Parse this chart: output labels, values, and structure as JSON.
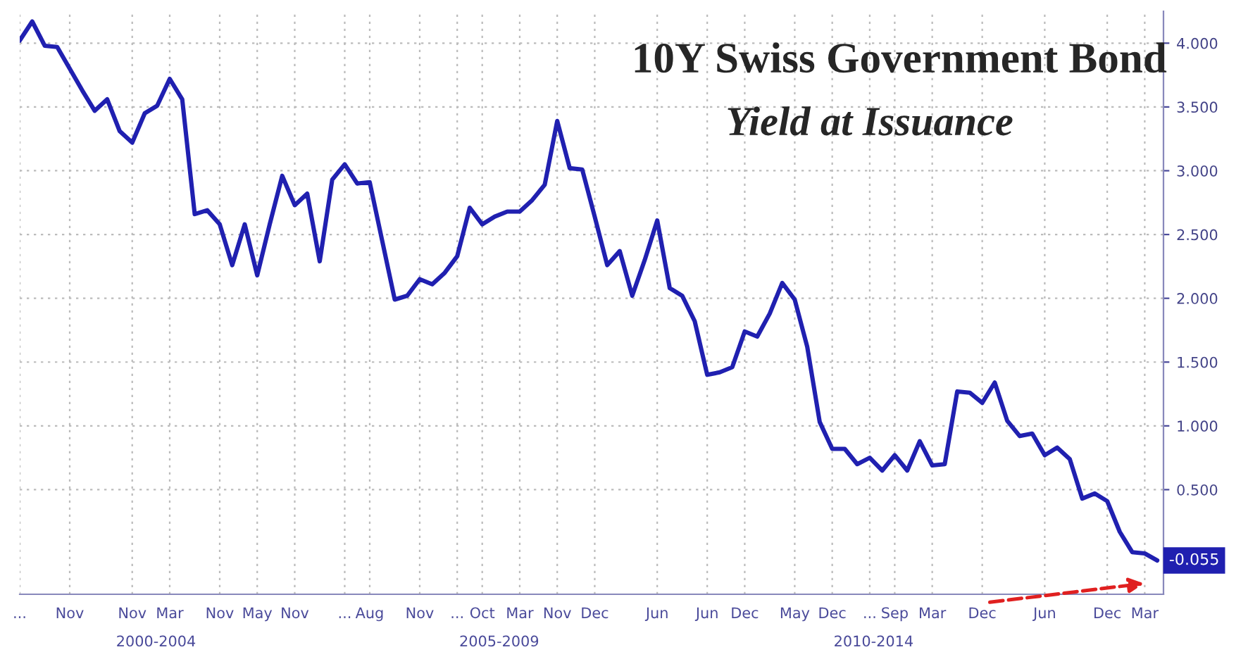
{
  "chart_data": {
    "type": "line",
    "title": "10Y Swiss Government Bond",
    "subtitle": "Yield at Issuance",
    "categories": [
      "...",
      null,
      null,
      null,
      "Nov",
      null,
      null,
      null,
      null,
      "Nov",
      null,
      null,
      "Mar",
      null,
      null,
      null,
      "Nov",
      null,
      null,
      "May",
      null,
      null,
      "Nov",
      null,
      null,
      null,
      "...",
      null,
      "Aug",
      null,
      null,
      null,
      "Nov",
      null,
      null,
      "...",
      null,
      "Oct",
      null,
      null,
      "Mar",
      null,
      null,
      "Nov",
      null,
      null,
      "Dec",
      null,
      null,
      null,
      null,
      "Jun",
      null,
      null,
      null,
      "Jun",
      null,
      null,
      "Dec",
      null,
      null,
      null,
      "May",
      null,
      null,
      "Dec",
      null,
      null,
      "...",
      null,
      "Sep",
      null,
      null,
      "Mar",
      null,
      null,
      null,
      "Dec",
      null,
      null,
      null,
      null,
      "Jun",
      null,
      null,
      null,
      null,
      "Dec",
      null,
      null,
      "Mar",
      null
    ],
    "series": [
      {
        "color": "#2020b0",
        "values": [
          4.02,
          4.17,
          3.98,
          3.97,
          3.8,
          3.63,
          3.47,
          3.56,
          3.31,
          3.22,
          3.45,
          3.51,
          3.72,
          3.56,
          2.66,
          2.69,
          2.58,
          2.26,
          2.58,
          2.18,
          2.58,
          2.96,
          2.73,
          2.82,
          2.29,
          2.93,
          3.05,
          2.9,
          2.91,
          2.45,
          1.99,
          2.02,
          2.15,
          2.11,
          2.2,
          2.33,
          2.71,
          2.58,
          2.64,
          2.68,
          2.68,
          2.77,
          2.89,
          3.39,
          3.02,
          3.01,
          2.64,
          2.26,
          2.37,
          2.02,
          2.3,
          2.61,
          2.08,
          2.02,
          1.82,
          1.4,
          1.42,
          1.46,
          1.74,
          1.7,
          1.88,
          2.12,
          1.99,
          1.62,
          1.03,
          0.82,
          0.82,
          0.7,
          0.75,
          0.65,
          0.77,
          0.65,
          0.88,
          0.69,
          0.7,
          1.27,
          1.26,
          1.18,
          1.34,
          1.04,
          0.92,
          0.94,
          0.77,
          0.83,
          0.74,
          0.43,
          0.47,
          0.41,
          0.17,
          0.01,
          0.0,
          -0.055
        ],
        "value_labels": [
          null,
          null,
          null,
          null,
          null,
          null,
          null,
          null,
          null,
          null,
          null,
          null,
          null,
          null,
          null,
          null,
          null,
          null,
          null,
          null,
          null,
          null,
          null,
          null,
          null,
          null,
          null,
          null,
          null,
          null,
          null,
          null,
          null,
          null,
          null,
          null,
          null,
          null,
          null,
          null,
          null,
          null,
          null,
          null,
          null,
          null,
          null,
          null,
          null,
          null,
          null,
          null,
          null,
          null,
          null,
          null,
          null,
          null,
          null,
          null,
          null,
          null,
          null,
          null,
          null,
          null,
          null,
          null,
          null,
          null,
          null,
          null,
          null,
          null,
          null,
          null,
          null,
          null,
          null,
          null,
          null,
          null,
          null,
          null,
          null,
          null,
          null,
          null,
          null,
          null,
          null,
          "-0.055"
        ]
      }
    ],
    "ylim": [
      -0.32,
      4.25
    ],
    "yticks": [
      {
        "value": 0.5,
        "label": "0.500"
      },
      {
        "value": 1.0,
        "label": "1.000"
      },
      {
        "value": 1.5,
        "label": "1.500"
      },
      {
        "value": 2.0,
        "label": "2.000"
      },
      {
        "value": 2.5,
        "label": "2.500"
      },
      {
        "value": 3.0,
        "label": "3.000"
      },
      {
        "value": 3.5,
        "label": "3.500"
      },
      {
        "value": 4.0,
        "label": "4.000"
      }
    ],
    "annotations": [
      "2000-2004",
      "2005-2009",
      "2010-2014"
    ],
    "grid": true,
    "line_style": "solid",
    "marker": "none",
    "legend": false
  }
}
